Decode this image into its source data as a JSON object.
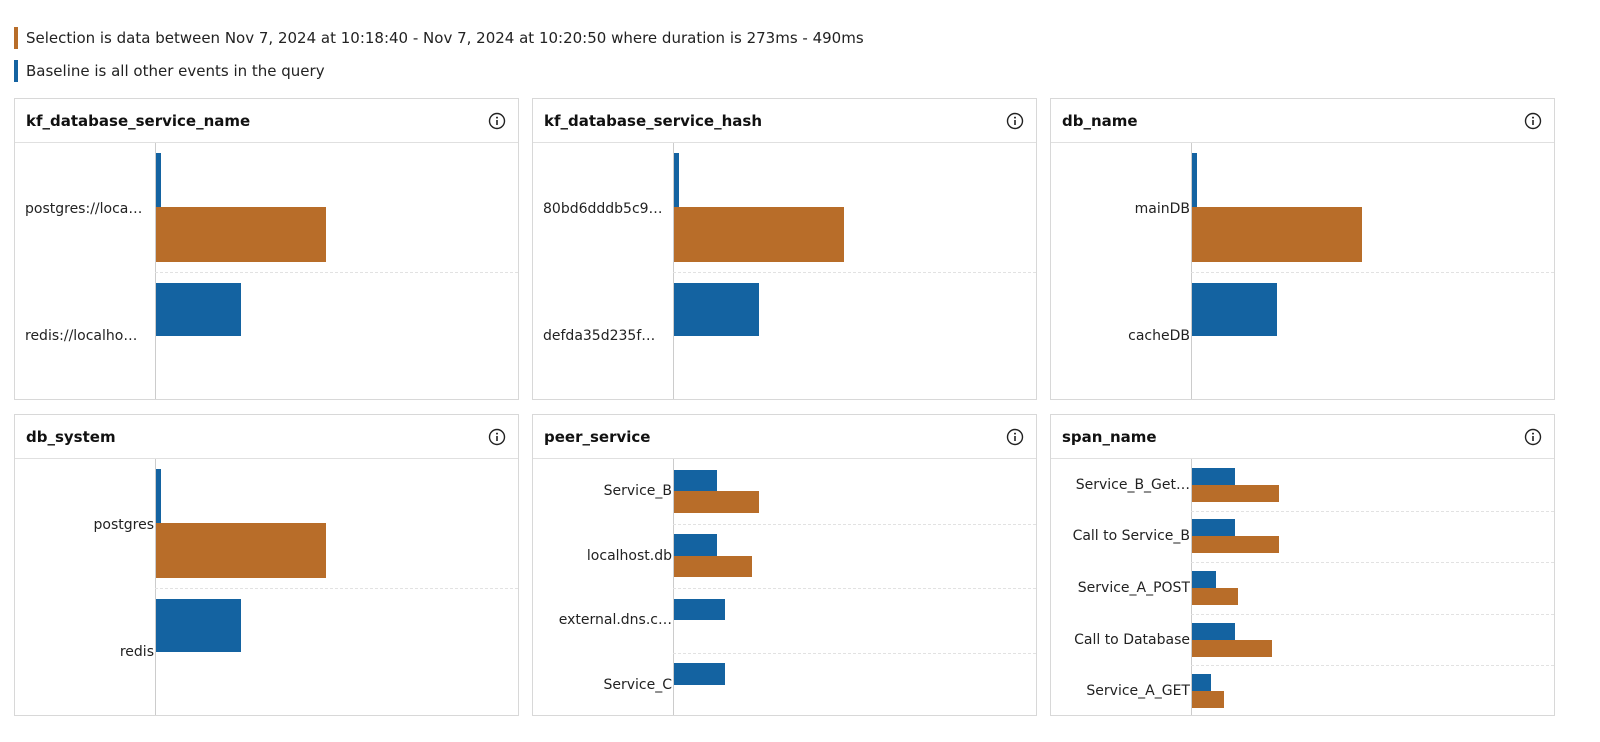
{
  "legend": {
    "selection": {
      "text": "Selection is data between Nov 7, 2024 at 10:18:40 - Nov 7, 2024 at 10:20:50 where duration is 273ms - 490ms",
      "color": "#b86d29"
    },
    "baseline": {
      "text": "Baseline is all other events in the query",
      "color": "#1463a1"
    }
  },
  "chart_data": [
    {
      "type": "bar",
      "title": "kf_database_service_name",
      "categories": [
        "postgres://loca…",
        "redis://localho…"
      ],
      "series": [
        {
          "name": "Baseline",
          "values": [
            0.03,
            0.5
          ]
        },
        {
          "name": "Selection",
          "values": [
            1.0,
            0.0
          ]
        }
      ],
      "xlim": [
        0,
        1
      ]
    },
    {
      "type": "bar",
      "title": "kf_database_service_hash",
      "categories": [
        "80bd6dddb5c9…",
        "defda35d235f…"
      ],
      "series": [
        {
          "name": "Baseline",
          "values": [
            0.03,
            0.5
          ]
        },
        {
          "name": "Selection",
          "values": [
            1.0,
            0.0
          ]
        }
      ],
      "xlim": [
        0,
        1
      ]
    },
    {
      "type": "bar",
      "title": "db_name",
      "categories": [
        "mainDB",
        "cacheDB"
      ],
      "series": [
        {
          "name": "Baseline",
          "values": [
            0.03,
            0.5
          ]
        },
        {
          "name": "Selection",
          "values": [
            1.0,
            0.0
          ]
        }
      ],
      "xlim": [
        0,
        1
      ]
    },
    {
      "type": "bar",
      "title": "db_system",
      "categories": [
        "postgres",
        "redis"
      ],
      "series": [
        {
          "name": "Baseline",
          "values": [
            0.03,
            0.5
          ]
        },
        {
          "name": "Selection",
          "values": [
            1.0,
            0.0
          ]
        }
      ],
      "xlim": [
        0,
        1
      ]
    },
    {
      "type": "bar",
      "title": "peer_service",
      "categories": [
        "Service_B",
        "localhost.db",
        "external.dns.c…",
        "Service_C"
      ],
      "series": [
        {
          "name": "Baseline",
          "values": [
            0.25,
            0.25,
            0.3,
            0.3
          ]
        },
        {
          "name": "Selection",
          "values": [
            0.5,
            0.46,
            0.0,
            0.0
          ]
        }
      ],
      "xlim": [
        0,
        1
      ]
    },
    {
      "type": "bar",
      "title": "span_name",
      "categories": [
        "Service_B_Get…",
        "Call to Service_B",
        "Service_A_POST",
        "Call to Database",
        "Service_A_GET"
      ],
      "series": [
        {
          "name": "Baseline",
          "values": [
            0.25,
            0.25,
            0.14,
            0.25,
            0.11
          ]
        },
        {
          "name": "Selection",
          "values": [
            0.51,
            0.51,
            0.27,
            0.47,
            0.19
          ]
        }
      ],
      "xlim": [
        0,
        1
      ]
    }
  ]
}
